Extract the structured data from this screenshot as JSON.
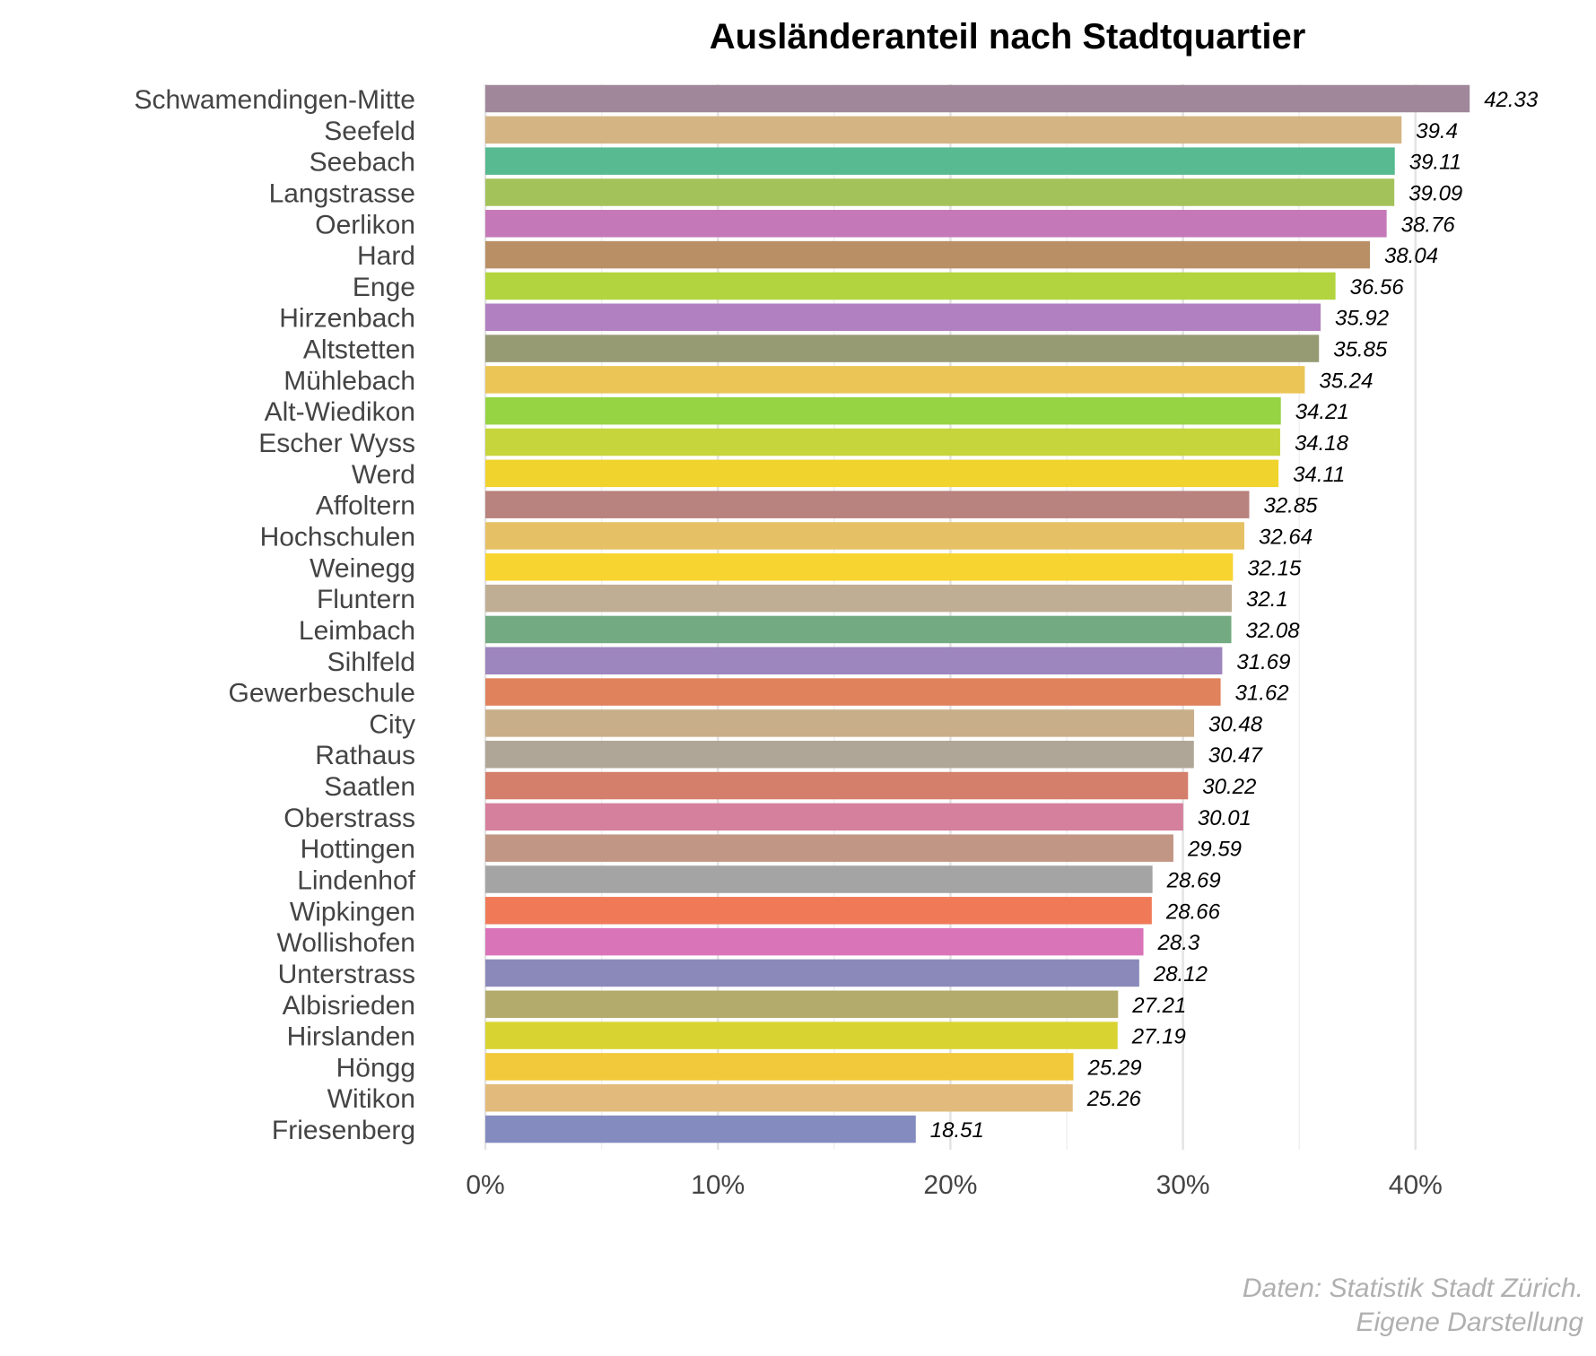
{
  "chart_data": {
    "type": "bar",
    "orientation": "horizontal",
    "title": "Ausländeranteil nach Stadtquartier",
    "xlabel": "",
    "ylabel": "",
    "xlim": [
      0,
      45
    ],
    "grid": true,
    "legend": "none",
    "value_suffix": "%",
    "ticks": [
      {
        "value": 0,
        "label": "0%"
      },
      {
        "value": 10,
        "label": "10%"
      },
      {
        "value": 20,
        "label": "20%"
      },
      {
        "value": 30,
        "label": "30%"
      },
      {
        "value": 40,
        "label": "40%"
      }
    ],
    "bars": [
      {
        "category": "Schwamendingen-Mitte",
        "value": 42.33,
        "label": "42.33",
        "color": "#a08799"
      },
      {
        "category": "Seefeld",
        "value": 39.4,
        "label": "39.4",
        "color": "#d4b483"
      },
      {
        "category": "Seebach",
        "value": 39.11,
        "label": "39.11",
        "color": "#58ba90"
      },
      {
        "category": "Langstrasse",
        "value": 39.09,
        "label": "39.09",
        "color": "#a3c25a"
      },
      {
        "category": "Oerlikon",
        "value": 38.76,
        "label": "38.76",
        "color": "#c578b8"
      },
      {
        "category": "Hard",
        "value": 38.04,
        "label": "38.04",
        "color": "#b99066"
      },
      {
        "category": "Enge",
        "value": 36.56,
        "label": "36.56",
        "color": "#b2d43e"
      },
      {
        "category": "Hirzenbach",
        "value": 35.92,
        "label": "35.92",
        "color": "#b180c0"
      },
      {
        "category": "Altstetten",
        "value": 35.85,
        "label": "35.85",
        "color": "#969b74"
      },
      {
        "category": "Mühlebach",
        "value": 35.24,
        "label": "35.24",
        "color": "#ebc656"
      },
      {
        "category": "Alt-Wiedikon",
        "value": 34.21,
        "label": "34.21",
        "color": "#96d443"
      },
      {
        "category": "Escher Wyss",
        "value": 34.18,
        "label": "34.18",
        "color": "#c6d53b"
      },
      {
        "category": "Werd",
        "value": 34.11,
        "label": "34.11",
        "color": "#f0d32d"
      },
      {
        "category": "Affoltern",
        "value": 32.85,
        "label": "32.85",
        "color": "#b8827e"
      },
      {
        "category": "Hochschulen",
        "value": 32.64,
        "label": "32.64",
        "color": "#e6c064"
      },
      {
        "category": "Weinegg",
        "value": 32.15,
        "label": "32.15",
        "color": "#f8d431"
      },
      {
        "category": "Fluntern",
        "value": 32.1,
        "label": "32.1",
        "color": "#c0ae94"
      },
      {
        "category": "Leimbach",
        "value": 32.08,
        "label": "32.08",
        "color": "#74aa81"
      },
      {
        "category": "Sihlfeld",
        "value": 31.69,
        "label": "31.69",
        "color": "#9d85bd"
      },
      {
        "category": "Gewerbeschule",
        "value": 31.62,
        "label": "31.62",
        "color": "#e0825c"
      },
      {
        "category": "City",
        "value": 30.48,
        "label": "30.48",
        "color": "#c9ae8a"
      },
      {
        "category": "Rathaus",
        "value": 30.47,
        "label": "30.47",
        "color": "#b0a697"
      },
      {
        "category": "Saatlen",
        "value": 30.22,
        "label": "30.22",
        "color": "#d47e6c"
      },
      {
        "category": "Oberstrass",
        "value": 30.01,
        "label": "30.01",
        "color": "#d5809c"
      },
      {
        "category": "Hottingen",
        "value": 29.59,
        "label": "29.59",
        "color": "#c29684"
      },
      {
        "category": "Lindenhof",
        "value": 28.69,
        "label": "28.69",
        "color": "#a4a4a4"
      },
      {
        "category": "Wipkingen",
        "value": 28.66,
        "label": "28.66",
        "color": "#f07a58"
      },
      {
        "category": "Wollishofen",
        "value": 28.3,
        "label": "28.3",
        "color": "#da74b8"
      },
      {
        "category": "Unterstrass",
        "value": 28.12,
        "label": "28.12",
        "color": "#8b89b9"
      },
      {
        "category": "Albisrieden",
        "value": 27.21,
        "label": "27.21",
        "color": "#b3ab6b"
      },
      {
        "category": "Hirslanden",
        "value": 27.19,
        "label": "27.19",
        "color": "#d9d331"
      },
      {
        "category": "Höngg",
        "value": 25.29,
        "label": "25.29",
        "color": "#f2c93a"
      },
      {
        "category": "Witikon",
        "value": 25.26,
        "label": "25.26",
        "color": "#e2bb7c"
      },
      {
        "category": "Friesenberg",
        "value": 18.51,
        "label": "18.51",
        "color": "#848bbf"
      }
    ],
    "caption": [
      "Daten: Statistik Stadt Zürich.",
      "Eigene Darstellung"
    ]
  }
}
